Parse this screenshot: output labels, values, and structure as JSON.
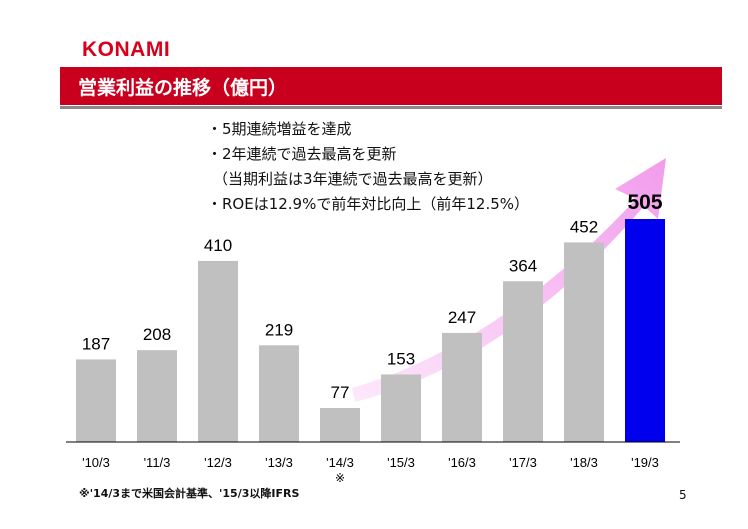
{
  "header": {
    "logo": "KONAMI",
    "title": "営業利益の推移（億円）"
  },
  "bullets": [
    "・5期連続増益を達成",
    "・2年連続で過去最高を更新",
    "（当期利益は3年連続で過去最高を更新）",
    "・ROEは12.9%で前年対比向上（前年12.5%）"
  ],
  "footnote": "※'14/3まで米国会計基準、'15/3以降IFRS",
  "page_number": "5",
  "colors": {
    "brand_red": "#c8001e",
    "logo_red": "#d9001b",
    "bar_gray": "#c0c0c0",
    "bar_highlight": "#0000ee",
    "arrow_pink": "#f7b6f2"
  },
  "chart_data": {
    "type": "bar",
    "title": "営業利益の推移（億円）",
    "categories": [
      "'10/3",
      "'11/3",
      "'12/3",
      "'13/3",
      "'14/3",
      "'15/3",
      "'16/3",
      "'17/3",
      "'18/3",
      "'19/3"
    ],
    "values": [
      187,
      208,
      410,
      219,
      77,
      153,
      247,
      364,
      452,
      505
    ],
    "value_labels": [
      "187",
      "208",
      "410",
      "219",
      "77",
      "153",
      "247",
      "364",
      "452",
      "505"
    ],
    "category_note": {
      "index": 4,
      "text": "※"
    },
    "highlight_index": 9,
    "ylim": [
      0,
      505
    ],
    "grid": false,
    "legend": "none",
    "xlabel": "",
    "ylabel": ""
  }
}
